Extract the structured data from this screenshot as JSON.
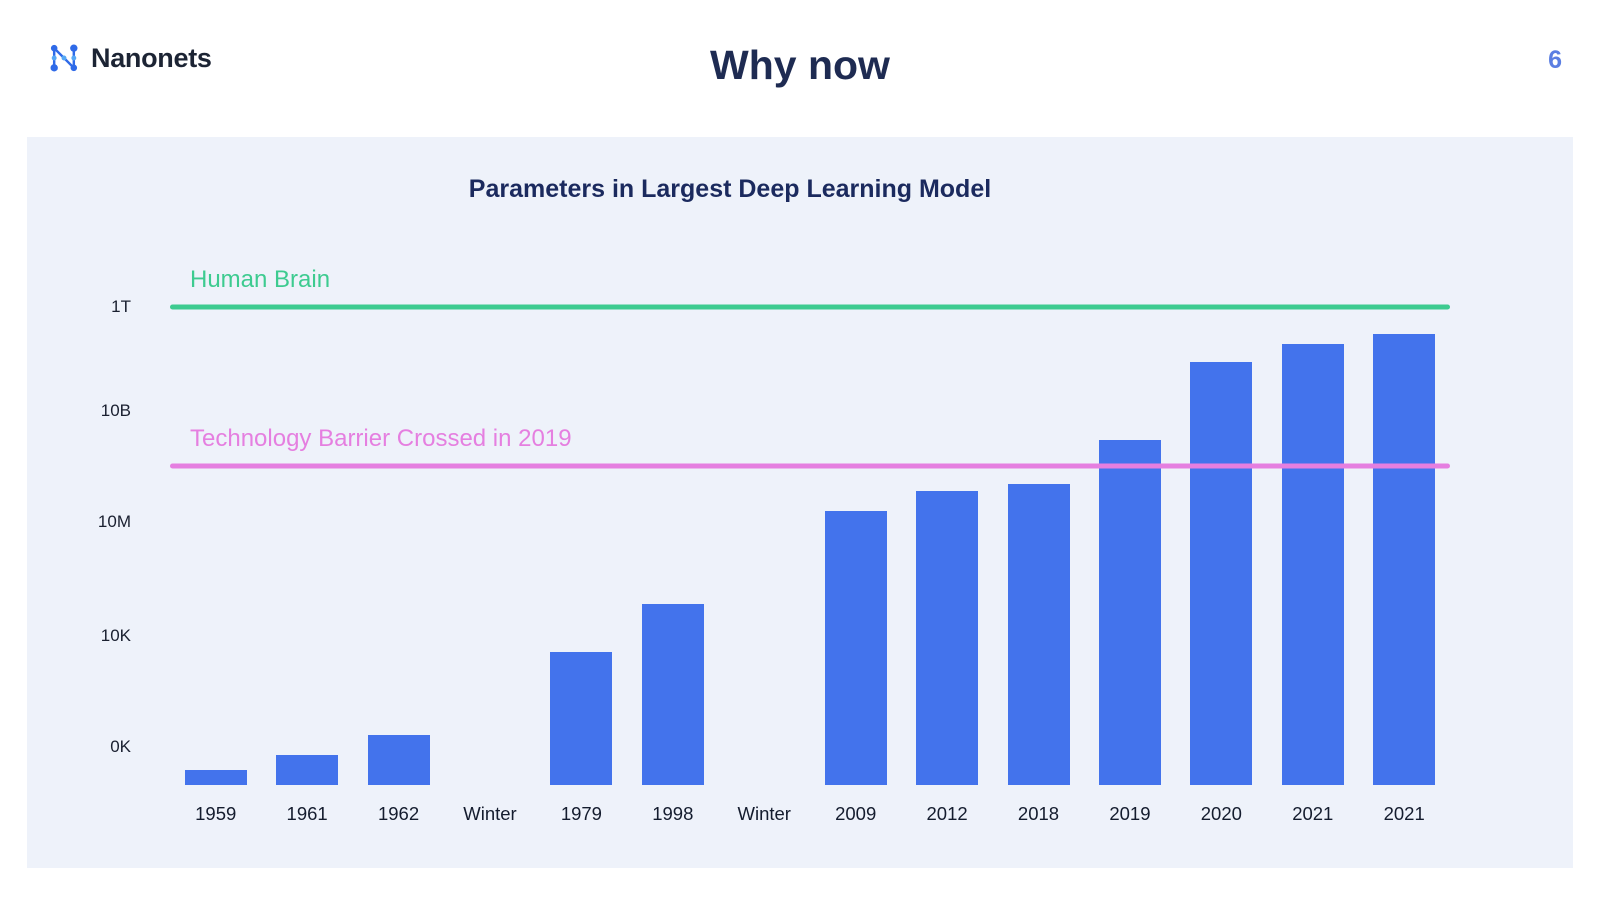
{
  "header": {
    "logo_text": "Nanonets",
    "logo_icon": "nanonets-molecule-icon",
    "title": "Why now",
    "page_number": "6"
  },
  "colors": {
    "bar": "#4373ec",
    "human_brain_line": "#3dcb90",
    "tech_barrier_line": "#e57fe0",
    "title_navy": "#1e2b52",
    "page_number_blue": "#5b7ee2",
    "panel_background": "#eef2fa"
  },
  "chart_data": {
    "type": "bar",
    "title": "Parameters in Largest Deep Learning Model",
    "xlabel": "",
    "ylabel": "",
    "grid": false,
    "legend": "none",
    "bar_color": "#4373ec",
    "y_axis": {
      "scale": "log",
      "tick_labels": [
        "1T",
        "10B",
        "10M",
        "10K",
        "0K"
      ],
      "tick_positions_pct": [
        95.6,
        74.8,
        52.6,
        29.8,
        7.6
      ]
    },
    "categories": [
      "1959",
      "1961",
      "1962",
      "Winter",
      "1979",
      "1998",
      "Winter",
      "2009",
      "2012",
      "2018",
      "2019",
      "2020",
      "2021",
      "2021"
    ],
    "bars": [
      {
        "label": "1959",
        "height_pct": 3.0,
        "approx_parameters": "<1K"
      },
      {
        "label": "1961",
        "height_pct": 6.0,
        "approx_parameters": "<1K"
      },
      {
        "label": "1962",
        "height_pct": 10.0,
        "approx_parameters": "~1K"
      },
      {
        "label": "Winter",
        "height_pct": 0,
        "approx_parameters": null
      },
      {
        "label": "1979",
        "height_pct": 26.6,
        "approx_parameters": "~5K"
      },
      {
        "label": "1998",
        "height_pct": 36.2,
        "approx_parameters": "~60K"
      },
      {
        "label": "Winter",
        "height_pct": 0,
        "approx_parameters": null
      },
      {
        "label": "2009",
        "height_pct": 54.8,
        "approx_parameters": "~15M"
      },
      {
        "label": "2012",
        "height_pct": 58.8,
        "approx_parameters": "~60M"
      },
      {
        "label": "2018",
        "height_pct": 60.2,
        "approx_parameters": "~100M"
      },
      {
        "label": "2019",
        "height_pct": 69.0,
        "approx_parameters": "~1.5B"
      },
      {
        "label": "2020",
        "height_pct": 84.6,
        "approx_parameters": "~175B"
      },
      {
        "label": "2021",
        "height_pct": 88.2,
        "approx_parameters": "~400B"
      },
      {
        "label": "2021",
        "height_pct": 90.2,
        "approx_parameters": "~600B"
      }
    ],
    "annotations": [
      {
        "name": "human-brain",
        "label": "Human Brain",
        "level_pct": 95.6,
        "color": "#3dcb90"
      },
      {
        "name": "tech-barrier",
        "label": "Technology Barrier Crossed in 2019",
        "level_pct": 63.8,
        "color": "#e57fe0"
      }
    ]
  }
}
